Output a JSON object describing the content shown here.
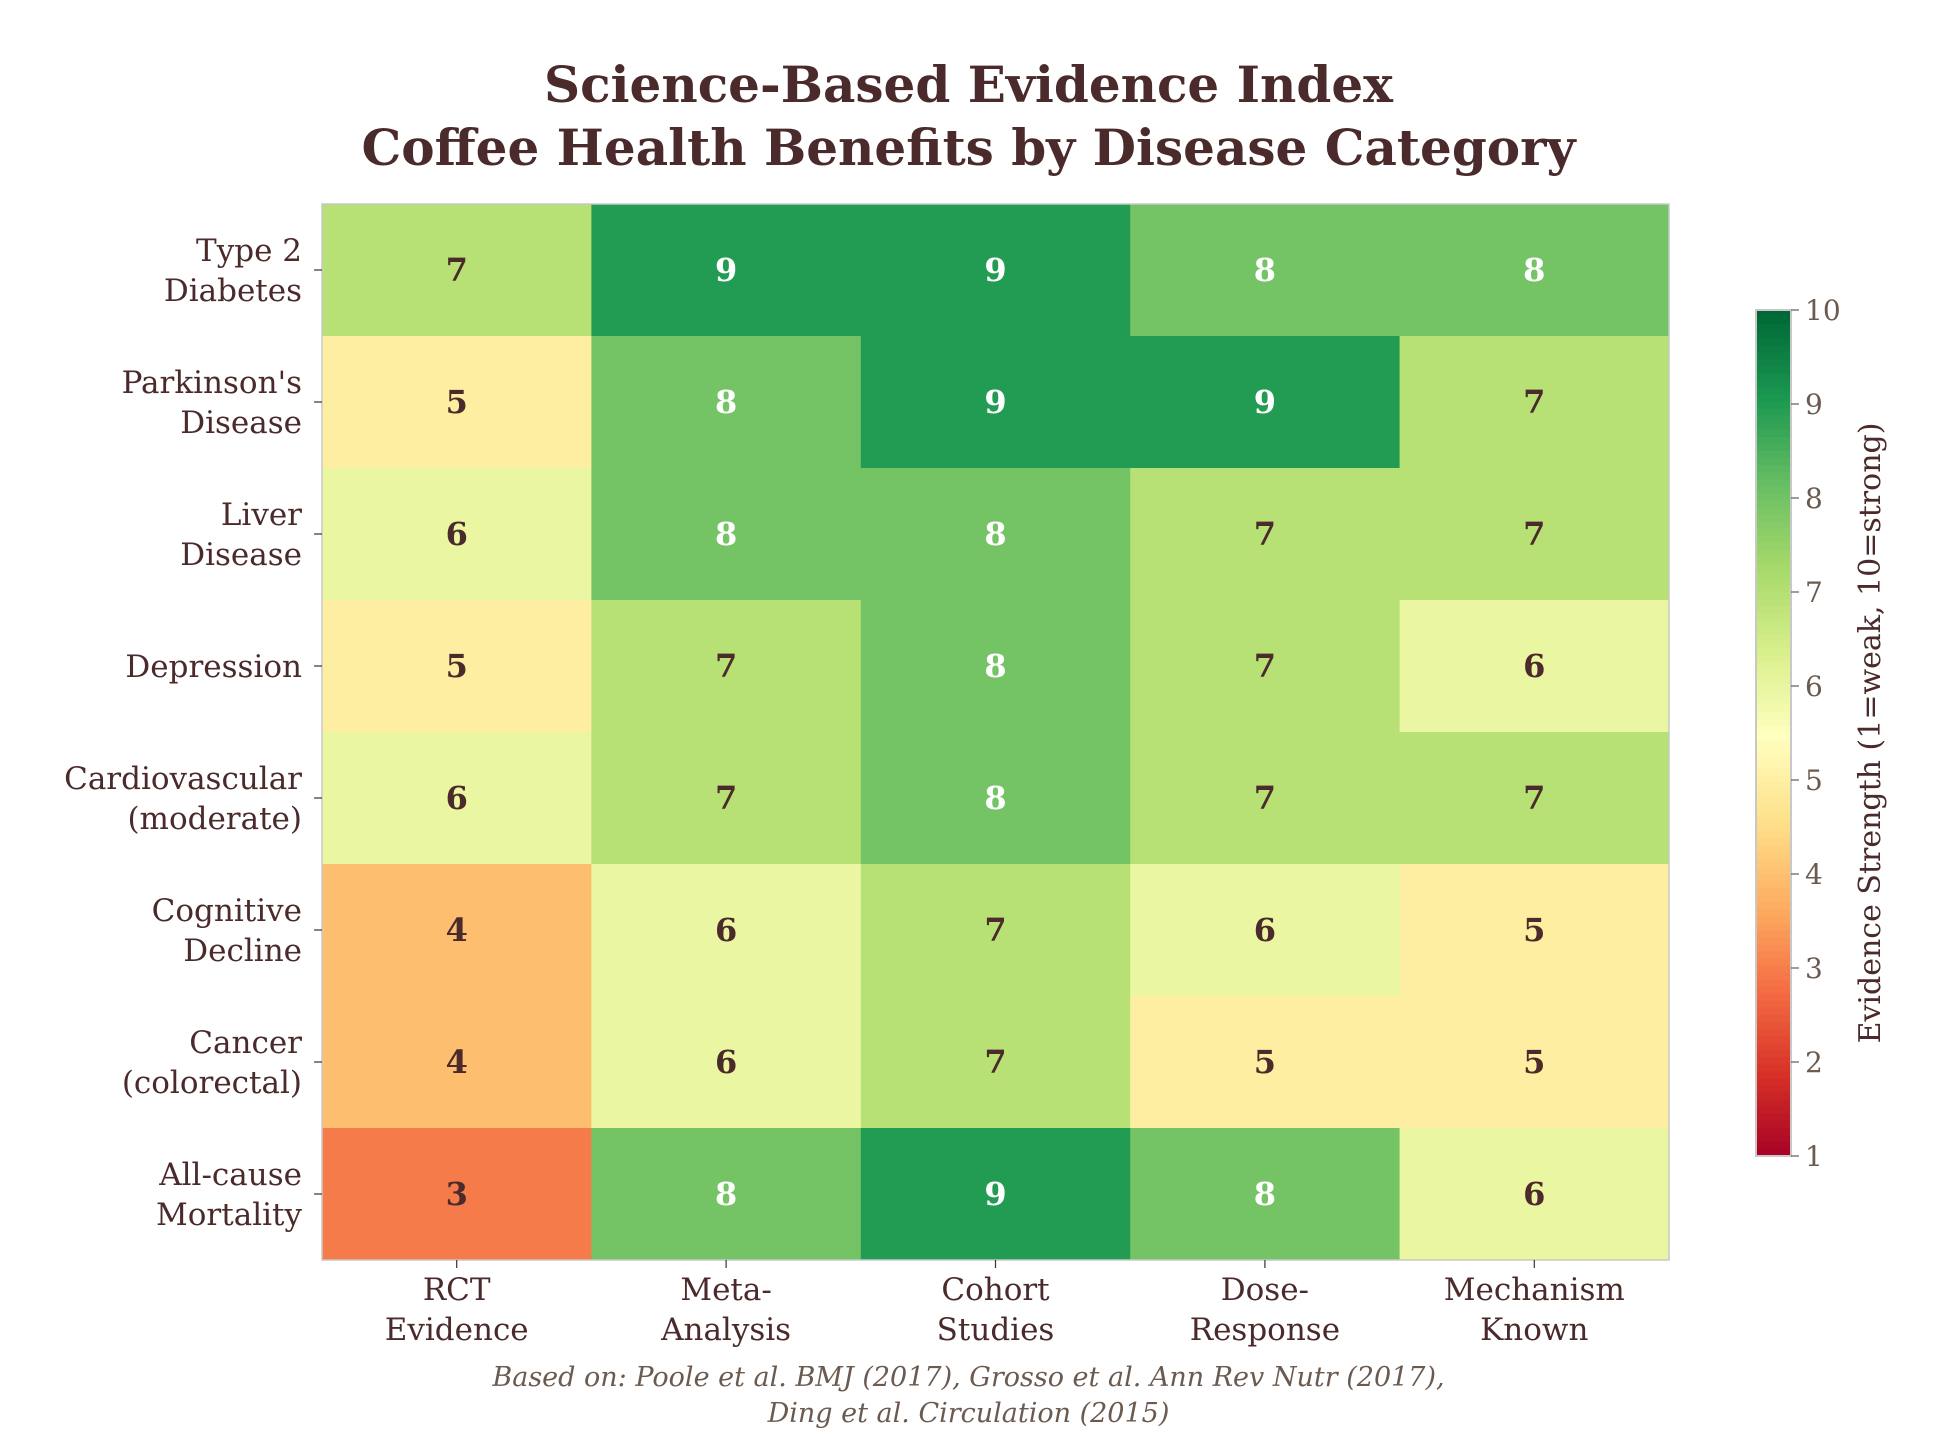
{
  "chart_data": {
    "type": "heatmap",
    "title": "Science-Based Evidence Index",
    "subtitle": "Coffee Health Benefits by Disease Category",
    "rows": [
      [
        "Type 2",
        "Diabetes"
      ],
      [
        "Parkinson's",
        "Disease"
      ],
      [
        "Liver",
        "Disease"
      ],
      [
        "Depression"
      ],
      [
        "Cardiovascular",
        "(moderate)"
      ],
      [
        "Cognitive",
        "Decline"
      ],
      [
        "Cancer",
        "(colorectal)"
      ],
      [
        "All-cause",
        "Mortality"
      ]
    ],
    "columns": [
      [
        "RCT",
        "Evidence"
      ],
      [
        "Meta-",
        "Analysis"
      ],
      [
        "Cohort",
        "Studies"
      ],
      [
        "Dose-",
        "Response"
      ],
      [
        "Mechanism",
        "Known"
      ]
    ],
    "values": [
      [
        7,
        9,
        9,
        8,
        8
      ],
      [
        5,
        8,
        9,
        9,
        7
      ],
      [
        6,
        8,
        8,
        7,
        7
      ],
      [
        5,
        7,
        8,
        7,
        6
      ],
      [
        6,
        7,
        8,
        7,
        7
      ],
      [
        4,
        6,
        7,
        6,
        5
      ],
      [
        4,
        6,
        7,
        5,
        5
      ],
      [
        3,
        8,
        9,
        8,
        6
      ]
    ],
    "colormap": "RdYlGn",
    "vmin": 1,
    "vmax": 10,
    "colorbar": {
      "label": "Evidence Strength (1=weak, 10=strong)",
      "ticks": [
        "1",
        "2",
        "3",
        "4",
        "5",
        "6",
        "7",
        "8",
        "9",
        "10"
      ]
    },
    "annotations": "cell values shown",
    "footnote": [
      "Based on: Poole et al. BMJ (2017), Grosso et al. Ann Rev Nutr (2017),",
      "Ding et al. Circulation (2015)"
    ]
  },
  "colors": {
    "text_dark": "#4a2a2a",
    "text_light": "#ffffff",
    "frame": "#c8c8c8"
  }
}
